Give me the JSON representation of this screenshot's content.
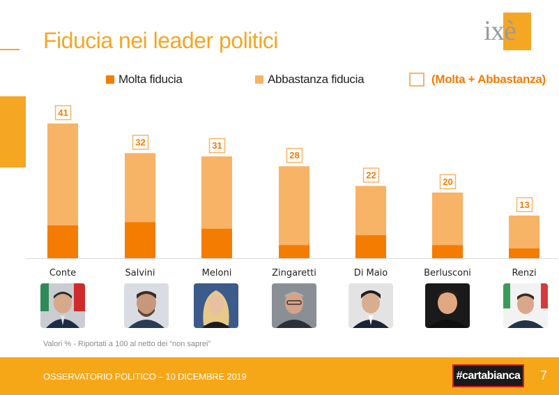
{
  "title": "Fiducia nei leader politici",
  "logo_text": "ixè",
  "legend": {
    "molta": "Molta fiducia",
    "abbastanza": "Abbastanza fiducia",
    "totale": "(Molta + Abbastanza)"
  },
  "colors": {
    "molta": "#f47c00",
    "abbastanza": "#f7b366",
    "accent": "#f5a623",
    "total_text": "#f47c00"
  },
  "chart_data": {
    "type": "bar",
    "stacked": true,
    "categories": [
      "Conte",
      "Salvini",
      "Meloni",
      "Zingaretti",
      "Di Maio",
      "Berlusconi",
      "Renzi"
    ],
    "series": [
      {
        "name": "Molta fiducia",
        "values": [
          10,
          11,
          9,
          4,
          7,
          4,
          3
        ]
      },
      {
        "name": "Abbastanza fiducia",
        "values": [
          31,
          21,
          22,
          24,
          15,
          16,
          10
        ]
      }
    ],
    "totals": [
      41,
      32,
      31,
      28,
      22,
      20,
      13
    ],
    "totals_label": "(Molta + Abbastanza)",
    "ylim": [
      0,
      41
    ],
    "legend_position": "top",
    "grid": false
  },
  "footnote": "Valori % - Riportati a 100 al netto dei “non saprei”",
  "footer": {
    "text": "OSSERVATORIO POLITICO – 10 DICEMBRE 2019",
    "brand": "#cartabianca",
    "page": "7"
  }
}
